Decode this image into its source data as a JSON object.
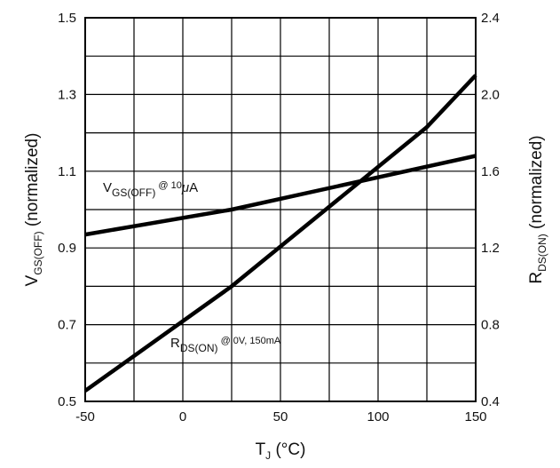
{
  "chart_data": {
    "type": "line",
    "x_axis": {
      "label_main": "T",
      "label_sub": "J",
      "label_unit": "(°C)",
      "ticks": [
        "-50",
        "0",
        "50",
        "100",
        "150"
      ],
      "tick_values": [
        -50,
        0,
        50,
        100,
        150
      ],
      "range": [
        -50,
        150
      ]
    },
    "y_left_axis": {
      "label_main": "V",
      "label_sub": "GS(OFF)",
      "label_suffix": "(normalized)",
      "ticks": [
        "1.5",
        "1.3",
        "1.1",
        "0.9",
        "0.7",
        "0.5"
      ],
      "tick_values": [
        1.5,
        1.3,
        1.1,
        0.9,
        0.7,
        0.5
      ],
      "range": [
        0.5,
        1.5
      ]
    },
    "y_right_axis": {
      "label_main": "R",
      "label_sub": "DS(ON)",
      "label_suffix": "(normalized)",
      "ticks": [
        "2.4",
        "2.0",
        "1.6",
        "1.2",
        "0.8",
        "0.4"
      ],
      "tick_values": [
        2.4,
        2.0,
        1.6,
        1.2,
        0.8,
        0.4
      ],
      "range": [
        0.4,
        2.4
      ]
    },
    "grid": true,
    "grid_x_step": 25,
    "grid_y_step": 0.1,
    "series": [
      {
        "axis": "left",
        "x": [
          -50,
          25,
          150
        ],
        "y": [
          0.935,
          1.0,
          1.14
        ]
      },
      {
        "axis": "right",
        "x": [
          -50,
          25,
          125,
          150
        ],
        "y": [
          0.455,
          1.0,
          1.83,
          2.1
        ]
      }
    ],
    "annotations": [
      {
        "main": "V",
        "sub": "GS(OFF)",
        "rest": " @ 10",
        "mu": "μ",
        "unit": "A"
      },
      {
        "main": "R",
        "sub": "DS(ON)",
        "rest": " @ 0V, 150mA"
      }
    ]
  }
}
